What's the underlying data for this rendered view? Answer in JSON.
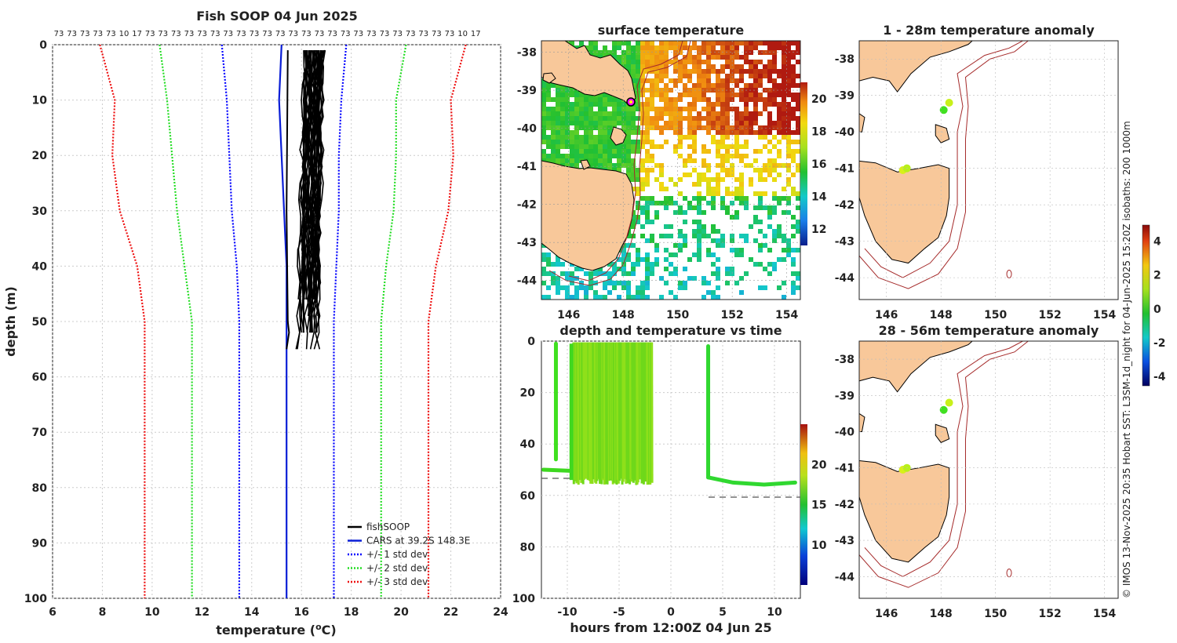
{
  "chart_data": [
    {
      "type": "line",
      "title": "Fish SOOP 04 Jun 2025",
      "xlabel": "temperature (",
      "xlabel_sup": "o",
      "xlabel_end": "C)",
      "ylabel": "depth (m)",
      "xlim": [
        6,
        24
      ],
      "ylim": [
        100,
        0
      ],
      "xticks": [
        "6",
        "8",
        "10",
        "12",
        "14",
        "16",
        "18",
        "20",
        "22",
        "24"
      ],
      "yticks": [
        "0",
        "10",
        "20",
        "30",
        "40",
        "50",
        "60",
        "70",
        "80",
        "90",
        "100"
      ],
      "top_counts": [
        "73",
        "73",
        "73",
        "73",
        "73",
        "10",
        "17",
        "73",
        "73",
        "73",
        "73",
        "73",
        "73",
        "73",
        "73",
        "73",
        "73",
        "73",
        "73",
        "73",
        "73",
        "73",
        "73",
        "73",
        "73",
        "73",
        "73",
        "73",
        "73",
        "73",
        "73",
        "10",
        "17"
      ],
      "legend": [
        "fishSOOP",
        "CARS at 39.2S 148.3E",
        "+/- 1 std dev",
        "+/- 2 std dev",
        "+/- 3 std dev"
      ],
      "series": [
        {
          "name": "CARS at 39.2S 148.3E",
          "color": "#0a1ed6",
          "depth": [
            0,
            10,
            20,
            30,
            40,
            50,
            55,
            60,
            100
          ],
          "temp": [
            15.2,
            15.1,
            15.2,
            15.3,
            15.4,
            15.4,
            15.4,
            15.4,
            15.4
          ]
        },
        {
          "name": "-1 std",
          "color": "#0000ff",
          "depth": [
            0,
            10,
            20,
            30,
            40,
            50,
            60,
            100
          ],
          "temp": [
            12.8,
            13.0,
            13.1,
            13.2,
            13.4,
            13.5,
            13.5,
            13.5
          ]
        },
        {
          "name": "+1 std",
          "color": "#0000ff",
          "depth": [
            0,
            10,
            20,
            30,
            40,
            50,
            60,
            100
          ],
          "temp": [
            17.8,
            17.6,
            17.5,
            17.5,
            17.4,
            17.3,
            17.3,
            17.3
          ]
        },
        {
          "name": "-2 std",
          "color": "#22dd22",
          "depth": [
            0,
            10,
            20,
            30,
            40,
            50,
            60,
            100
          ],
          "temp": [
            10.3,
            10.6,
            10.8,
            11.0,
            11.3,
            11.6,
            11.6,
            11.6
          ]
        },
        {
          "name": "+2 std",
          "color": "#22dd22",
          "depth": [
            0,
            10,
            20,
            30,
            40,
            50,
            60,
            100
          ],
          "temp": [
            20.2,
            19.8,
            19.8,
            19.7,
            19.4,
            19.2,
            19.2,
            19.2
          ]
        },
        {
          "name": "-3 std",
          "color": "#ee1111",
          "depth": [
            0,
            10,
            20,
            30,
            40,
            50,
            60,
            100
          ],
          "temp": [
            7.9,
            8.5,
            8.4,
            8.7,
            9.4,
            9.7,
            9.7,
            9.7
          ]
        },
        {
          "name": "+3 std",
          "color": "#ee1111",
          "depth": [
            0,
            10,
            20,
            30,
            40,
            50,
            60,
            100
          ],
          "temp": [
            22.6,
            22.0,
            22.1,
            21.9,
            21.4,
            21.1,
            21.1,
            21.1
          ]
        }
      ]
    },
    {
      "type": "heatmap",
      "title": "surface temperature",
      "xlim": [
        145,
        154.5
      ],
      "ylim": [
        -44.5,
        -37.7
      ],
      "xticks": [
        "146",
        "148",
        "150",
        "152",
        "154"
      ],
      "yticks": [
        "-38",
        "-39",
        "-40",
        "-41",
        "-42",
        "-43",
        "-44"
      ],
      "colorbar_ticks": [
        "12",
        "14",
        "16",
        "18",
        "20"
      ],
      "colorbar_range": [
        11,
        21
      ],
      "marker": {
        "lon": 148.3,
        "lat": -39.2
      }
    },
    {
      "type": "scatter",
      "title": "depth and temperature vs time",
      "xlabel": "hours from 12:00Z 04 Jun 25",
      "xlim": [
        -12.5,
        12.5
      ],
      "ylim": [
        100,
        0
      ],
      "xticks": [
        "-10",
        "-5",
        "0",
        "5",
        "10"
      ],
      "yticks": [
        "0",
        "20",
        "40",
        "60",
        "80",
        "100"
      ],
      "colorbar_ticks": [
        "10",
        "15",
        "20"
      ],
      "colorbar_range": [
        5,
        25
      ]
    },
    {
      "type": "heatmap",
      "title": "1 - 28m temperature anomaly",
      "xlim": [
        145,
        154.5
      ],
      "ylim": [
        -44.6,
        -37.5
      ],
      "xticks": [
        "146",
        "148",
        "150",
        "152",
        "154"
      ],
      "yticks": [
        "-38",
        "-39",
        "-40",
        "-41",
        "-42",
        "-43",
        "-44"
      ]
    },
    {
      "type": "heatmap",
      "title": "28 - 56m temperature anomaly",
      "xlim": [
        145,
        154.5
      ],
      "ylim": [
        -44.6,
        -37.5
      ],
      "xticks": [
        "146",
        "148",
        "150",
        "152",
        "154"
      ],
      "yticks": [
        "-38",
        "-39",
        "-40",
        "-41",
        "-42",
        "-43",
        "-44"
      ]
    }
  ],
  "anomaly_colorbar": {
    "ticks": [
      "4",
      "2",
      "0",
      "-2",
      "-4"
    ],
    "range": [
      -4.5,
      5
    ]
  },
  "footer": "© IMOS 13-Nov-2025 20:35 Hobart SST: L3SM-1d_night for 04-Jun-2025 15:20Z isobaths: 200  1000m",
  "colors": {
    "land": "#f8c89a",
    "isobath": "#a52a2a",
    "grid": "#cccccc"
  }
}
